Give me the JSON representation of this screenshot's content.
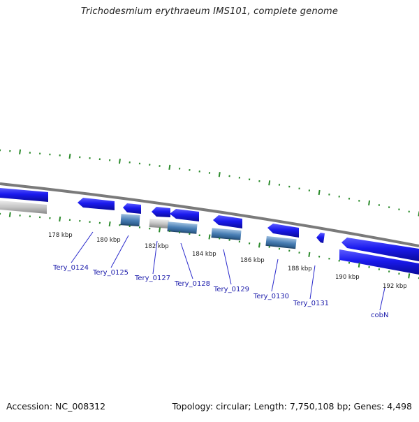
{
  "title": "Trichodesmium erythraeum IMS101, complete genome",
  "footer": {
    "accession": "Accession: NC_008312",
    "topology": "Topology: circular; Length: 7,750,108 bp; Genes: 4,498"
  },
  "ticks": [
    "178 kbp",
    "180 kbp",
    "182 kbp",
    "184 kbp",
    "186 kbp",
    "188 kbp",
    "190 kbp",
    "192 kbp"
  ],
  "genes": [
    "Tery_0124",
    "Tery_0125",
    "Tery_0127",
    "Tery_0128",
    "Tery_0129",
    "Tery_0130",
    "Tery_0131",
    "cobN"
  ],
  "colors": {
    "cds": "#1a1aee",
    "rna": "#4a7fb5",
    "pseudo": "#bdbdbd",
    "backbone": "#888888",
    "ticks": "#2a8a2a",
    "gene_label": "#1a1aaa",
    "leader": "#2a2acc"
  }
}
